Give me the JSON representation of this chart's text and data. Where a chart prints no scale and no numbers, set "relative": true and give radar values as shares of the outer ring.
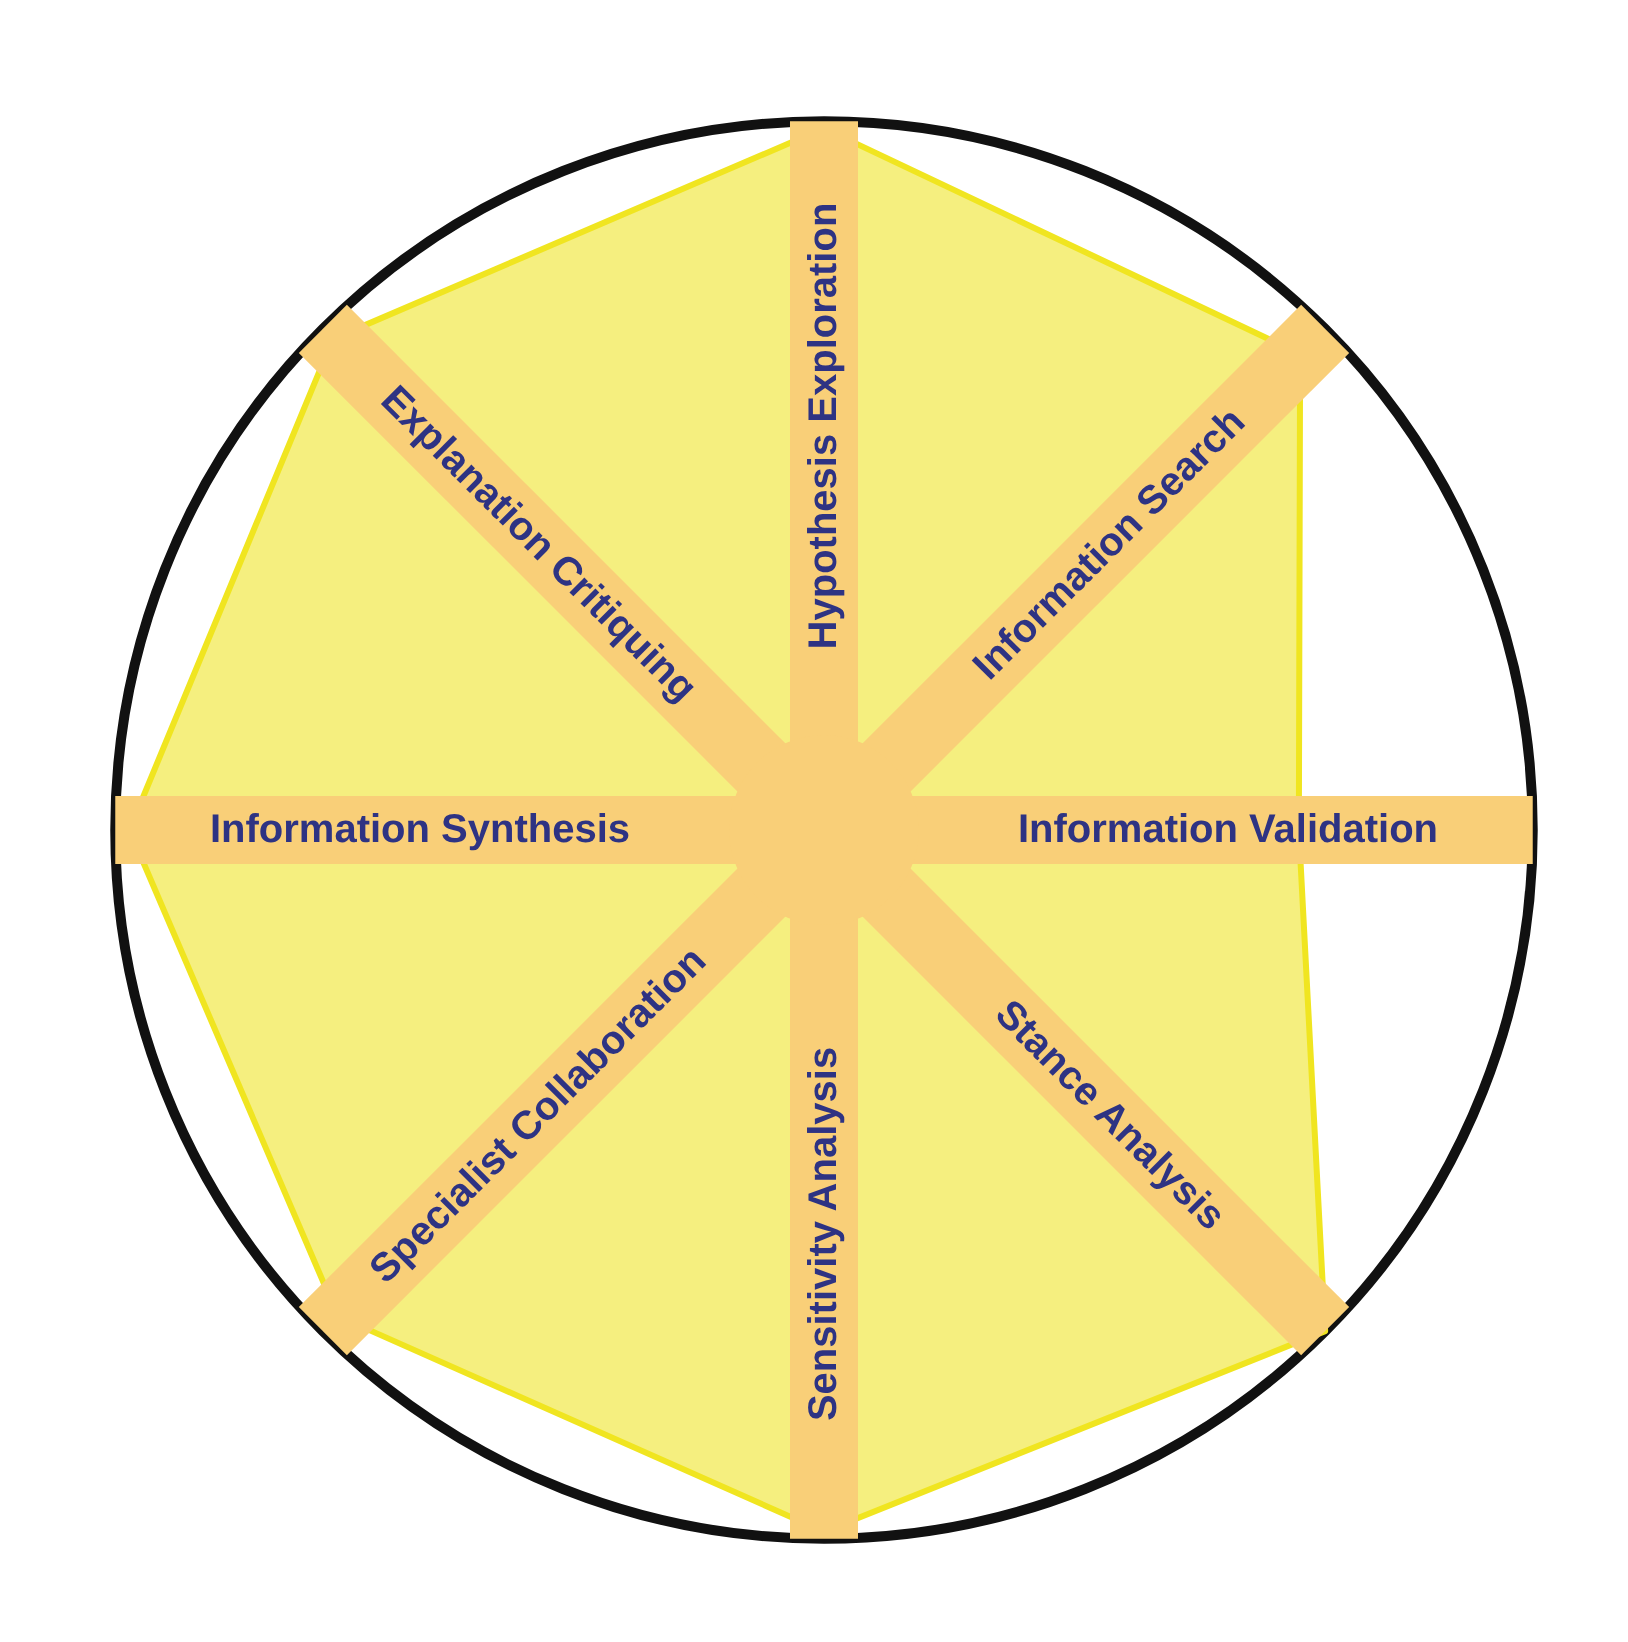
{
  "chart_data": {
    "type": "radar",
    "relative": true,
    "categories": [
      "Hypothesis Exploration",
      "Information Search",
      "Information Validation",
      "Stance Analysis",
      "Sensitivity Analysis",
      "Specialist Collaboration",
      "Information Synthesis",
      "Explanation Critiquing"
    ],
    "series": [
      {
        "color": "#f5ef7f",
        "values": [
          0.99,
          0.95,
          0.67,
          1.0,
          0.99,
          0.97,
          0.98,
          0.98
        ]
      }
    ]
  }
}
